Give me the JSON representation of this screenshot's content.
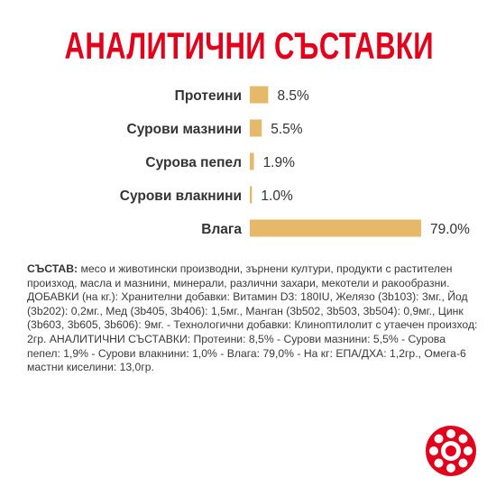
{
  "page_title": "АНАЛИТИЧНИ СЪСТАВКИ",
  "chart_data": {
    "type": "bar",
    "orientation": "horizontal",
    "title": "АНАЛИТИЧНИ СЪСТАВКИ",
    "categories": [
      "Протеини",
      "Сурови мазнини",
      "Сурова пепел",
      "Сурови влакнини",
      "Влага"
    ],
    "values": [
      8.5,
      5.5,
      1.9,
      1.0,
      79.0
    ],
    "value_labels": [
      "8.5%",
      "5.5%",
      "1.9%",
      "1.0%",
      "79.0%"
    ],
    "unit": "%",
    "grid": false,
    "legend": "none",
    "bar_color": "#e6b96a"
  },
  "description": {
    "label": "СЪСТАВ:",
    "text": " месо и животински производни, зърнени култури, продукти с растителен произход, масла и мазнини, минерали, различни захари, мекотели и ракообразни. ДОБАВКИ (на кг.): Хранителни добавки: Витамин D3: 180IU, Желязо (3b103): 3мг., Йод (3b202): 0,2мг., Мед (3b405, 3b406): 1,5мг., Манган (3b502, 3b503, 3b504): 0,9мг., Цинк (3b603, 3b605, 3b606): 9мг. - Технологични добавки: Клиноптилолит с утаечен произход: 2гр. АНАЛИТИЧНИ СЪСТАВКИ: Протеини: 8,5% - Сурови мазнини: 5,5% - Сурова пепел: 1,9% - Сурови влакнини: 1,0% - Влага: 79,0% - На кг: ЕПА/ДХА: 1,2гр., Омега-6 мастни киселини: 13,0гр."
  },
  "colors": {
    "brand_red": "#e2001a",
    "bar": "#e6b96a",
    "text": "#333333"
  },
  "logo_icon": "royal-canin-crown-logo"
}
